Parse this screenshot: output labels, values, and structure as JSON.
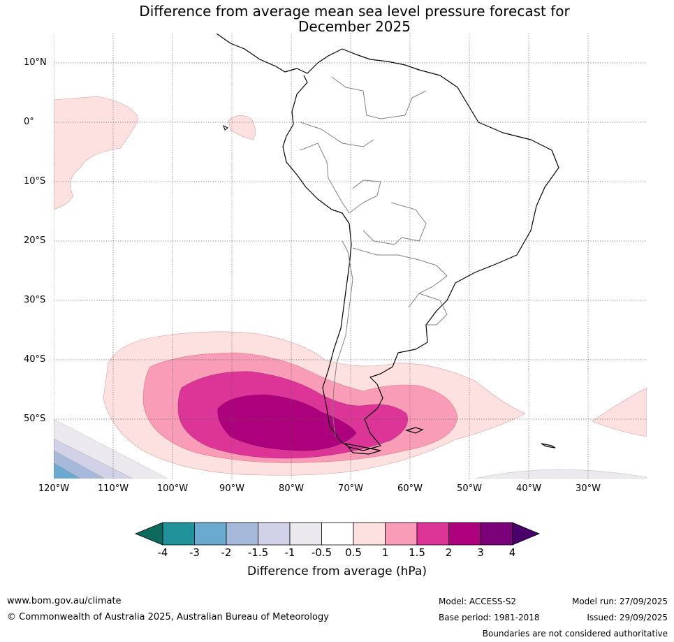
{
  "title_line1": "Difference from average mean sea level pressure forecast for",
  "title_line2": "December 2025",
  "lat_labels": [
    "10°N",
    "0°",
    "10°S",
    "20°S",
    "30°S",
    "40°S",
    "50°S"
  ],
  "lon_labels": [
    "120°W",
    "110°W",
    "100°W",
    "90°W",
    "80°W",
    "70°W",
    "60°W",
    "50°W",
    "40°W",
    "30°W"
  ],
  "colorbar": {
    "title": "Difference from average (hPa)",
    "ticks": [
      "-4",
      "-3",
      "-2",
      "-1.5",
      "-1",
      "-0.5",
      "0.5",
      "1",
      "1.5",
      "2",
      "3",
      "4"
    ],
    "colors": [
      "#1f9399",
      "#6aaad1",
      "#a7b9da",
      "#d1d2e7",
      "#ece9ee",
      "#ffffff",
      "#fde0e0",
      "#f89cb8",
      "#dd3497",
      "#ae017e",
      "#7a0177"
    ],
    "under_color": "#0d6b5e",
    "over_color": "#49006a"
  },
  "footer": {
    "website": "www.bom.gov.au/climate",
    "copyright": "© Commonwealth of Australia 2025, Australian Bureau of Meteorology",
    "model": "Model: ACCESS-S2",
    "base_period": "Base period: 1981-2018",
    "model_run": "Model run: 27/09/2025",
    "issued": "Issued: 29/09/2025",
    "boundaries_note": "Boundaries are not considered authoritative"
  }
}
